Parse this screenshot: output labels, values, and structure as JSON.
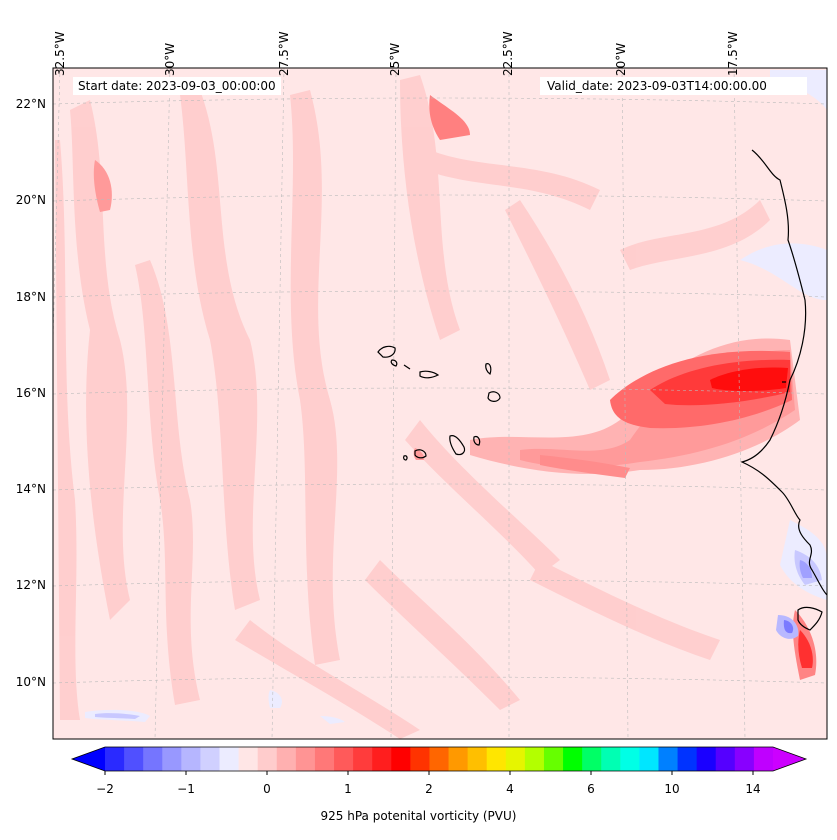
{
  "header": {
    "start_date": "Start date: 2023-09-03_00:00:00",
    "valid_date": "Valid_date: 2023-09-03T14:00:00.00"
  },
  "axes": {
    "lon_labels": [
      "32.5°W",
      "30°W",
      "27.5°W",
      "25°W",
      "22.5°W",
      "20°W",
      "17.5°W"
    ],
    "lat_labels": [
      "22°N",
      "20°N",
      "18°N",
      "16°N",
      "14°N",
      "12°N",
      "10°N"
    ]
  },
  "colorbar": {
    "title": "925 hPa potenital vorticity (PVU)",
    "tick_labels": [
      "−2",
      "−1",
      "0",
      "1",
      "2",
      "4",
      "6",
      "10",
      "14"
    ],
    "colors": [
      "#0000ff",
      "#2a2aff",
      "#5050ff",
      "#7575ff",
      "#9898ff",
      "#b6b6ff",
      "#d0d0ff",
      "#ececff",
      "#ffe6e6",
      "#ffcccc",
      "#ffb0b0",
      "#ff9494",
      "#ff7878",
      "#ff5a5a",
      "#ff3c3c",
      "#ff1e1e",
      "#ff0000",
      "#ff3300",
      "#ff6600",
      "#ff9900",
      "#ffbf00",
      "#ffe600",
      "#e6f500",
      "#b3ff00",
      "#66ff00",
      "#00ff00",
      "#00ff66",
      "#00ffb3",
      "#00ffe6",
      "#00e6ff",
      "#0080ff",
      "#0033ff",
      "#1a00ff",
      "#5500ff",
      "#8800ff",
      "#bf00ff",
      "#cc00ff"
    ]
  },
  "map": {
    "lon_range": [
      -33,
      -15
    ],
    "lat_range": [
      9,
      22.8
    ],
    "ocean_color": "#ffe7e7",
    "pv_positive_color": "#ffc6c6",
    "pv_strong_color": "#ff2020",
    "pv_negative_color": "#e8e8ff"
  }
}
